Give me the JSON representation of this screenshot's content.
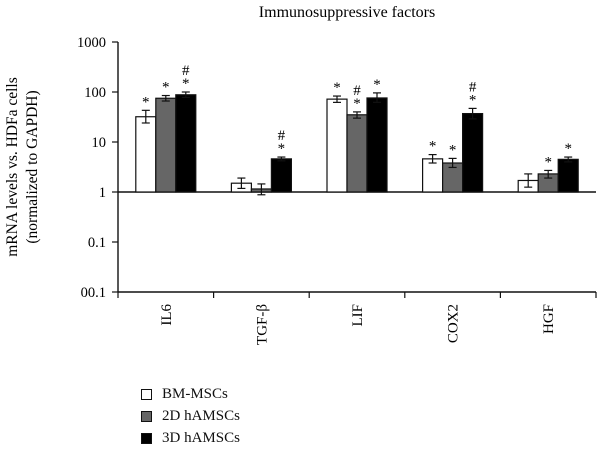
{
  "chart_data": {
    "type": "bar",
    "title": "Immunosuppressive factors",
    "ylabel_line1": "mRNA levels vs. HDFa cells",
    "ylabel_line2": "(normalized to GAPDH)",
    "yscale": "log",
    "ylim": [
      0.01,
      1000
    ],
    "yticks": [
      "1000",
      "100",
      "10",
      "1",
      "0.1",
      "00.1"
    ],
    "categories": [
      "IL6",
      "TGF-β",
      "LIF",
      "COX2",
      "HGF"
    ],
    "series": [
      {
        "name": "BM-MSCs",
        "color": "#ffffff",
        "values": [
          32,
          1.5,
          72,
          4.6,
          1.7
        ],
        "err_low": [
          24,
          1.18,
          62,
          3.8,
          1.25
        ],
        "err_high": [
          43,
          1.9,
          83,
          5.6,
          2.3
        ]
      },
      {
        "name": "2D hAMSCs",
        "color": "#666666",
        "values": [
          75,
          1.15,
          35,
          3.8,
          2.3
        ],
        "err_low": [
          66,
          0.88,
          30,
          3.1,
          1.9
        ],
        "err_high": [
          85,
          1.45,
          40,
          4.7,
          2.7
        ]
      },
      {
        "name": "3D hAMSCs",
        "color": "#000000",
        "values": [
          88,
          4.6,
          76,
          37,
          4.5
        ],
        "err_low": [
          78,
          4.2,
          62,
          29,
          4.0
        ],
        "err_high": [
          100,
          5.0,
          96,
          47,
          5.0
        ]
      }
    ],
    "significance": [
      {
        "category": 0,
        "series": 0,
        "marks": [
          "*"
        ]
      },
      {
        "category": 0,
        "series": 1,
        "marks": [
          "*"
        ]
      },
      {
        "category": 0,
        "series": 2,
        "marks": [
          "#",
          "*"
        ]
      },
      {
        "category": 1,
        "series": 2,
        "marks": [
          "#",
          "*"
        ]
      },
      {
        "category": 2,
        "series": 0,
        "marks": [
          "*"
        ]
      },
      {
        "category": 2,
        "series": 1,
        "marks": [
          "#",
          "*"
        ]
      },
      {
        "category": 2,
        "series": 2,
        "marks": [
          "*"
        ]
      },
      {
        "category": 3,
        "series": 0,
        "marks": [
          "*"
        ]
      },
      {
        "category": 3,
        "series": 1,
        "marks": [
          "*"
        ]
      },
      {
        "category": 3,
        "series": 2,
        "marks": [
          "#",
          "*"
        ]
      },
      {
        "category": 4,
        "series": 1,
        "marks": [
          "*"
        ]
      },
      {
        "category": 4,
        "series": 2,
        "marks": [
          "*"
        ]
      }
    ],
    "legend": "bottom-left",
    "grid": false
  }
}
